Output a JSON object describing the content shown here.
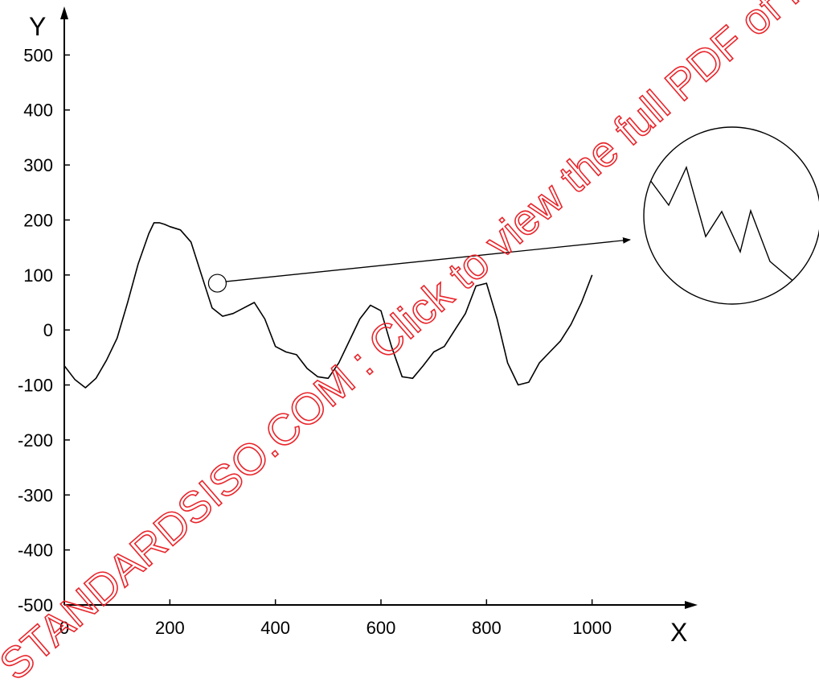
{
  "chart_data": {
    "type": "line",
    "xlabel": "X",
    "ylabel": "Y",
    "xlim": [
      0,
      1200
    ],
    "ylim": [
      -500,
      600
    ],
    "x_ticks": [
      0,
      200,
      400,
      600,
      800,
      1000
    ],
    "x_tick_labels": [
      "0",
      "200",
      "400",
      "600",
      "800",
      "1000"
    ],
    "y_ticks": [
      -500,
      -400,
      -300,
      -200,
      -100,
      0,
      100,
      200,
      300,
      400,
      500
    ],
    "y_tick_labels": [
      "-500",
      "-400",
      "-300",
      "-200",
      "-100",
      "0",
      "100",
      "200",
      "300",
      "400",
      "500"
    ],
    "grid": false,
    "series": [
      {
        "color": "#000000",
        "x": [
          0,
          20,
          40,
          60,
          80,
          100,
          120,
          140,
          160,
          170,
          180,
          190,
          200,
          220,
          240,
          260,
          280,
          300,
          320,
          340,
          360,
          380,
          400,
          420,
          440,
          460,
          480,
          500,
          520,
          540,
          560,
          580,
          600,
          620,
          640,
          660,
          680,
          700,
          720,
          740,
          760,
          780,
          800,
          820,
          840,
          860,
          880,
          900,
          920,
          940,
          960,
          980,
          1000
        ],
        "y": [
          -65,
          -90,
          -105,
          -88,
          -55,
          -15,
          50,
          120,
          175,
          195,
          195,
          192,
          188,
          182,
          160,
          100,
          40,
          25,
          30,
          40,
          50,
          20,
          -30,
          -40,
          -45,
          -70,
          -85,
          -88,
          -60,
          -20,
          20,
          45,
          35,
          -30,
          -85,
          -88,
          -65,
          -40,
          -30,
          0,
          30,
          80,
          85,
          20,
          -60,
          -100,
          -95,
          -60,
          -40,
          -20,
          10,
          50,
          100
        ]
      }
    ],
    "annotations": {
      "detail_marker_at": [
        290,
        85
      ]
    }
  },
  "watermark": "STANDARDSISO.COM : Click to view the full PDF of ISO"
}
